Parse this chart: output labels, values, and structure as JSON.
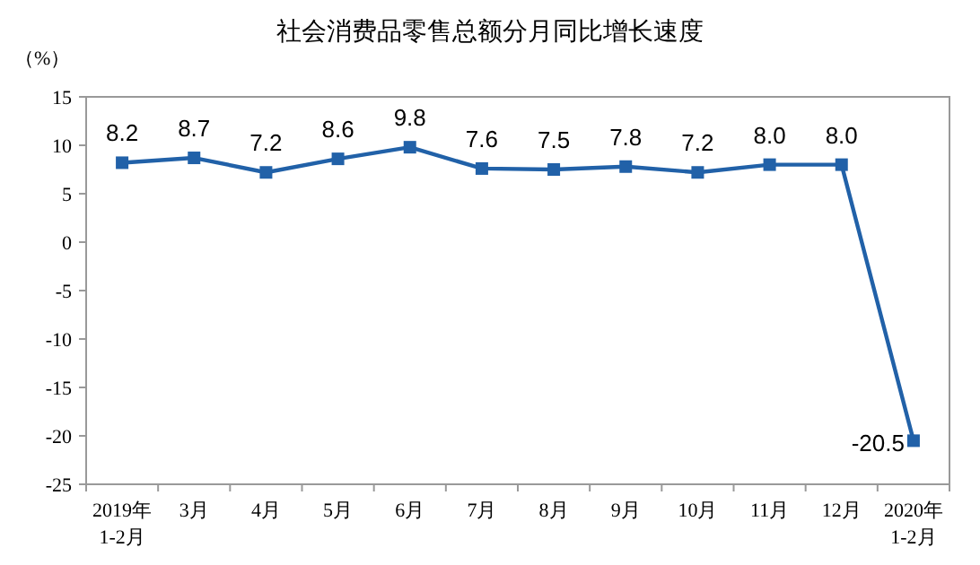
{
  "chart_data": {
    "type": "line",
    "title": "社会消费品零售总额分月同比增长速度",
    "ylabel": "（%）",
    "categories": [
      "2019年\n1-2月",
      "3月",
      "4月",
      "5月",
      "6月",
      "7月",
      "8月",
      "9月",
      "10月",
      "11月",
      "12月",
      "2020年\n1-2月"
    ],
    "series": [
      {
        "color": "#2161a8",
        "values": [
          8.2,
          8.7,
          7.2,
          8.6,
          9.8,
          7.6,
          7.5,
          7.8,
          7.2,
          8.0,
          8.0,
          -20.5
        ],
        "value_labels": [
          "8.2",
          "8.7",
          "7.2",
          "8.6",
          "9.8",
          "7.6",
          "7.5",
          "7.8",
          "7.2",
          "8.0",
          "8.0",
          "-20.5"
        ]
      }
    ],
    "ylim": [
      -25,
      15
    ],
    "yticks": [
      -25,
      -20,
      -15,
      -10,
      -5,
      0,
      5,
      10,
      15
    ],
    "grid": false,
    "marker": "square",
    "line_style": "solid"
  }
}
